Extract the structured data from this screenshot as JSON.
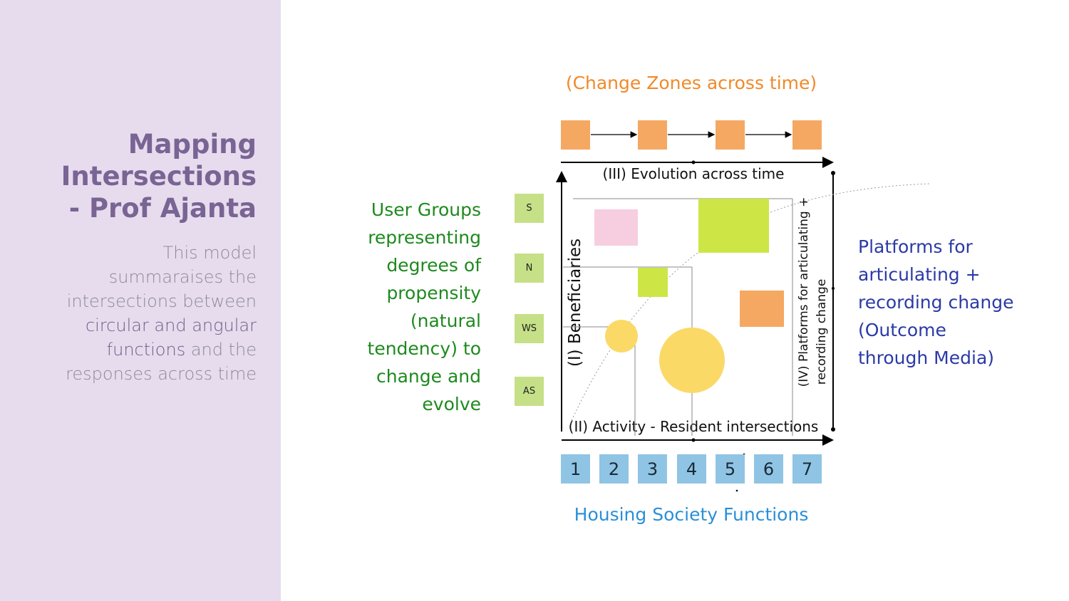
{
  "sidebar": {
    "title_lines": [
      "Mapping",
      "Intersections",
      "- Prof Ajanta"
    ],
    "description": {
      "line1": "This model",
      "line2": "summaraises the",
      "line3": "intersections between",
      "line4_em": "circular and angular",
      "line5_em": "functions",
      "line5_rest": " and the",
      "line6": "responses across time"
    }
  },
  "diagram": {
    "change_zones_label": "(Change Zones across time)",
    "evolution_label": "(III) Evolution across time",
    "beneficiaries_label": "(I) Beneficiaries",
    "activity_label": "(II) Activity - Resident intersections",
    "platforms_axis_line1": "(IV) Platforms for articulating +",
    "platforms_axis_line2": "recording change",
    "housing_label": "Housing Society Functions",
    "user_groups_lines": [
      "User Groups",
      "representing",
      "degrees of",
      "propensity",
      "(natural",
      "tendency) to",
      "change and",
      "evolve"
    ],
    "platforms_lines": [
      "Platforms for",
      "articulating +",
      "recording change",
      "(Outcome",
      "through Media)"
    ],
    "user_group_boxes": [
      "S",
      "N",
      "WS",
      "AS"
    ],
    "function_boxes": [
      "1",
      "2",
      "3",
      "4",
      "5",
      "6",
      "7"
    ],
    "colors": {
      "orange": "#f5a862",
      "lime": "#cde646",
      "pink": "#f7cde0",
      "yellow": "#fbd967",
      "green_box": "#c6e087",
      "blue_box": "#8fc4e4",
      "green_text": "#1e8a1e",
      "blue_text": "#2b3aa6",
      "orange_text": "#f08a2a",
      "housing_text": "#2a8fd8"
    }
  }
}
